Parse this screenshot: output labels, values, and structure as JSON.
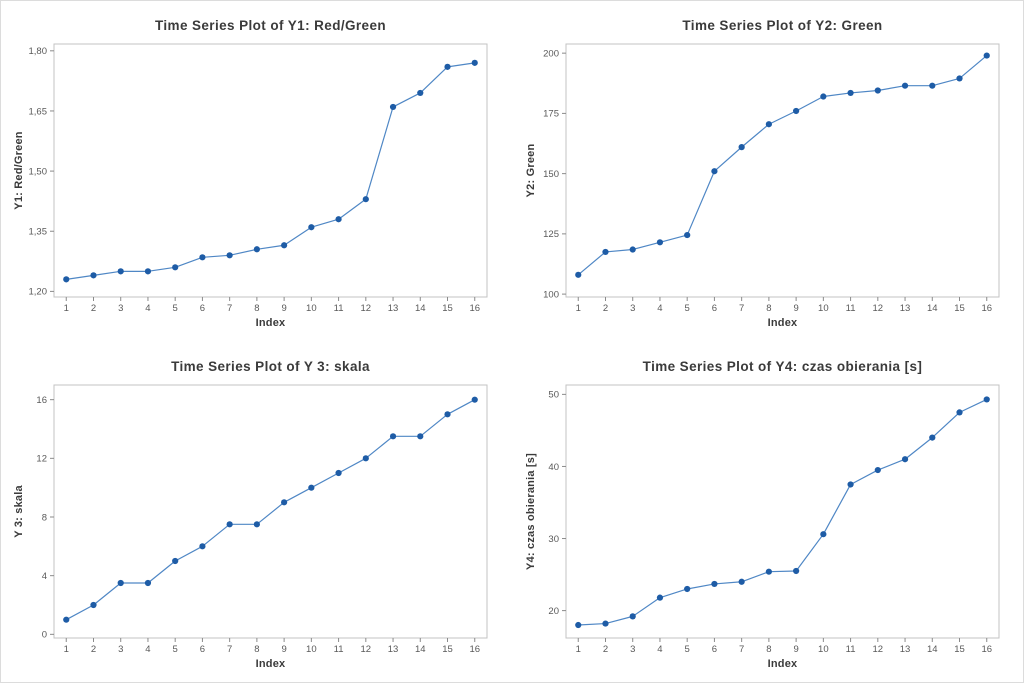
{
  "window": {
    "background": "#ffffff",
    "border_color": "#dcdcdc"
  },
  "style": {
    "line_color": "#4f87c5",
    "marker_color": "#1e5ca6",
    "frame_color": "#c3c3c3",
    "tick_color": "#8a8a8a",
    "tick_label_color": "#595959",
    "title_color": "#3b3b3b",
    "axis_label_color": "#3b3b3b",
    "plot_background": "#ffffff"
  },
  "chart_data": [
    {
      "type": "line",
      "title": "Time Series Plot of Y1: Red/Green",
      "xlabel": "Index",
      "ylabel": "Y1: Red/Green",
      "x": [
        1,
        2,
        3,
        4,
        5,
        6,
        7,
        8,
        9,
        10,
        11,
        12,
        13,
        14,
        15,
        16
      ],
      "values": [
        1.23,
        1.24,
        1.25,
        1.25,
        1.26,
        1.285,
        1.29,
        1.305,
        1.315,
        1.36,
        1.38,
        1.43,
        1.66,
        1.695,
        1.76,
        1.77
      ],
      "xlim": [
        0.55,
        16.45
      ],
      "ylim": [
        1.186,
        1.817
      ],
      "xticks": [
        1,
        2,
        3,
        4,
        5,
        6,
        7,
        8,
        9,
        10,
        11,
        12,
        13,
        14,
        15,
        16
      ],
      "xtick_labels": [
        "1",
        "2",
        "3",
        "4",
        "5",
        "6",
        "7",
        "8",
        "9",
        "10",
        "11",
        "12",
        "13",
        "14",
        "15",
        "16"
      ],
      "yticks": [
        1.2,
        1.35,
        1.5,
        1.65,
        1.8
      ],
      "ytick_labels": [
        "1,20",
        "1,35",
        "1,50",
        "1,65",
        "1,80"
      ],
      "grid": false,
      "legend": "none",
      "marker": "circle"
    },
    {
      "type": "line",
      "title": "Time Series Plot of Y2: Green",
      "xlabel": "Index",
      "ylabel": "Y2: Green",
      "x": [
        1,
        2,
        3,
        4,
        5,
        6,
        7,
        8,
        9,
        10,
        11,
        12,
        13,
        14,
        15,
        16
      ],
      "values": [
        108,
        117.5,
        118.5,
        121.5,
        124.5,
        151,
        161,
        170.5,
        176,
        182,
        183.5,
        184.5,
        186.5,
        186.5,
        189.5,
        199
      ],
      "xlim": [
        0.55,
        16.45
      ],
      "ylim": [
        98.8,
        203.8
      ],
      "xticks": [
        1,
        2,
        3,
        4,
        5,
        6,
        7,
        8,
        9,
        10,
        11,
        12,
        13,
        14,
        15,
        16
      ],
      "xtick_labels": [
        "1",
        "2",
        "3",
        "4",
        "5",
        "6",
        "7",
        "8",
        "9",
        "10",
        "11",
        "12",
        "13",
        "14",
        "15",
        "16"
      ],
      "yticks": [
        100,
        125,
        150,
        175,
        200
      ],
      "ytick_labels": [
        "100",
        "125",
        "150",
        "175",
        "200"
      ],
      "grid": false,
      "legend": "none",
      "marker": "circle"
    },
    {
      "type": "line",
      "title": "Time Series Plot of Y 3: skala",
      "xlabel": "Index",
      "ylabel": "Y 3: skala",
      "x": [
        1,
        2,
        3,
        4,
        5,
        6,
        7,
        8,
        9,
        10,
        11,
        12,
        13,
        14,
        15,
        16
      ],
      "values": [
        1,
        2,
        3.5,
        3.5,
        5,
        6,
        7.5,
        7.5,
        9,
        10,
        11,
        12,
        13.5,
        13.5,
        15,
        16
      ],
      "xlim": [
        0.55,
        16.45
      ],
      "ylim": [
        -0.25,
        17.0
      ],
      "xticks": [
        1,
        2,
        3,
        4,
        5,
        6,
        7,
        8,
        9,
        10,
        11,
        12,
        13,
        14,
        15,
        16
      ],
      "xtick_labels": [
        "1",
        "2",
        "3",
        "4",
        "5",
        "6",
        "7",
        "8",
        "9",
        "10",
        "11",
        "12",
        "13",
        "14",
        "15",
        "16"
      ],
      "yticks": [
        0,
        4,
        8,
        12,
        16
      ],
      "ytick_labels": [
        "0",
        "4",
        "8",
        "12",
        "16"
      ],
      "grid": false,
      "legend": "none",
      "marker": "circle"
    },
    {
      "type": "line",
      "title": "Time Series Plot of Y4: czas obierania [s]",
      "xlabel": "Index",
      "ylabel": "Y4: czas obierania [s]",
      "x": [
        1,
        2,
        3,
        4,
        5,
        6,
        7,
        8,
        9,
        10,
        11,
        12,
        13,
        14,
        15,
        16
      ],
      "values": [
        18,
        18.2,
        19.2,
        21.8,
        23,
        23.7,
        24,
        25.4,
        25.5,
        30.6,
        37.5,
        39.5,
        41,
        44,
        47.5,
        49.3
      ],
      "xlim": [
        0.55,
        16.45
      ],
      "ylim": [
        16.2,
        51.3
      ],
      "xticks": [
        1,
        2,
        3,
        4,
        5,
        6,
        7,
        8,
        9,
        10,
        11,
        12,
        13,
        14,
        15,
        16
      ],
      "xtick_labels": [
        "1",
        "2",
        "3",
        "4",
        "5",
        "6",
        "7",
        "8",
        "9",
        "10",
        "11",
        "12",
        "13",
        "14",
        "15",
        "16"
      ],
      "yticks": [
        20,
        30,
        40,
        50
      ],
      "ytick_labels": [
        "20",
        "30",
        "40",
        "50"
      ],
      "grid": false,
      "legend": "none",
      "marker": "circle"
    }
  ]
}
